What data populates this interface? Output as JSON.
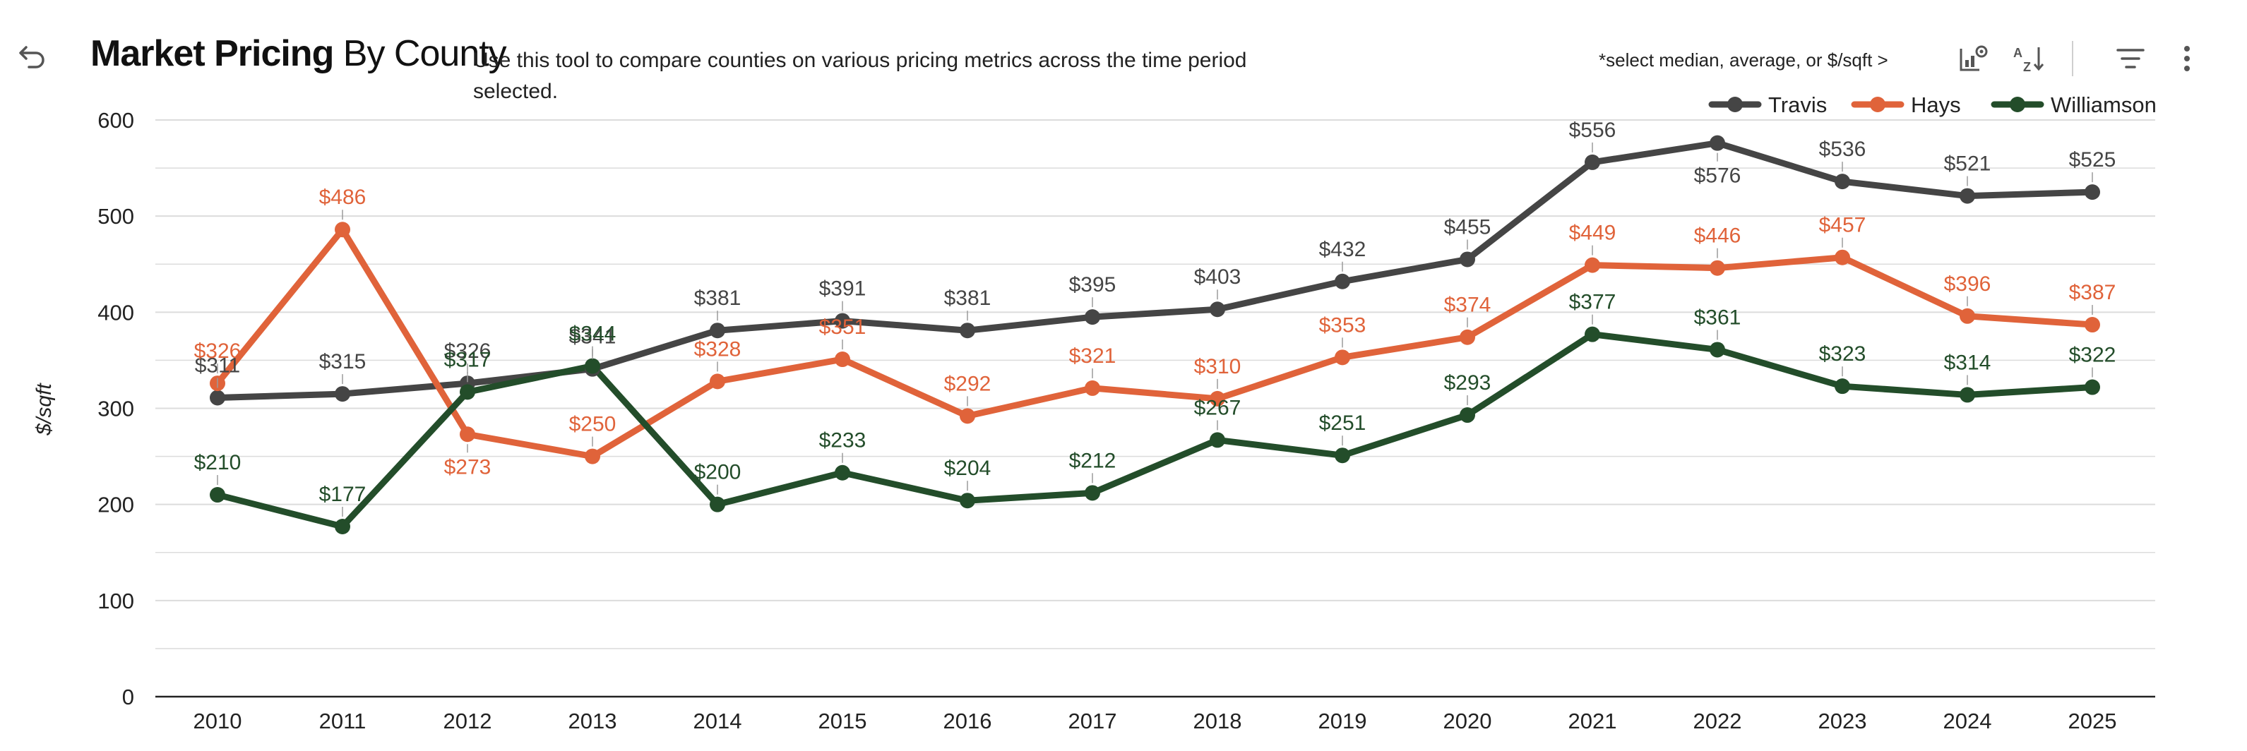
{
  "header": {
    "title_bold": "Market Pricing",
    "title_rest": " By County",
    "description": "Use this tool to compare counties on various pricing metrics across the time period selected.",
    "hint": "*select median, average, or $/sqft  >"
  },
  "toolbar": {
    "undo_icon": "undo-icon",
    "chart_settings_icon": "chart-settings-icon",
    "sort_icon": "sort-az-icon",
    "filter_icon": "filter-icon",
    "more_icon": "more-vertical-icon"
  },
  "colors": {
    "Travis": "#454545",
    "Hays": "#E0633A",
    "Williamson": "#234D2A",
    "grid": "#dcdcdc",
    "axis": "#222222"
  },
  "chart_data": {
    "type": "line",
    "title": "Market Pricing By County",
    "xlabel": "",
    "ylabel": "$/sqft",
    "ylim": [
      0,
      600
    ],
    "yticks": [
      0,
      100,
      200,
      300,
      400,
      500,
      600
    ],
    "grid": true,
    "legend_position": "top-right",
    "categories": [
      "2010",
      "2011",
      "2012",
      "2013",
      "2014",
      "2015",
      "2016",
      "2017",
      "2018",
      "2019",
      "2020",
      "2021",
      "2022",
      "2023",
      "2024",
      "2025"
    ],
    "series": [
      {
        "name": "Travis",
        "values": [
          311,
          315,
          326,
          341,
          381,
          391,
          381,
          395,
          403,
          432,
          455,
          556,
          576,
          536,
          521,
          525
        ],
        "labels": [
          "$311",
          "$315",
          "$326",
          "$341",
          "$381",
          "$391",
          "$381",
          "$395",
          "$403",
          "$432",
          "$455",
          "$556",
          "$576",
          "$536",
          "$521",
          "$525"
        ]
      },
      {
        "name": "Hays",
        "values": [
          326,
          486,
          273,
          250,
          328,
          351,
          292,
          321,
          310,
          353,
          374,
          449,
          446,
          457,
          396,
          387
        ],
        "labels": [
          "$326",
          "$486",
          "$273",
          "$250",
          "$328",
          "$351",
          "$292",
          "$321",
          "$310",
          "$353",
          "$374",
          "$449",
          "$446",
          "$457",
          "$396",
          "$387"
        ]
      },
      {
        "name": "Williamson",
        "values": [
          210,
          177,
          317,
          344,
          200,
          233,
          204,
          212,
          267,
          251,
          293,
          377,
          361,
          323,
          314,
          322
        ],
        "labels": [
          "$210",
          "$177",
          "$317",
          "$344",
          "$200",
          "$233",
          "$204",
          "$212",
          "$267",
          "$251",
          "$293",
          "$377",
          "$361",
          "$323",
          "$314",
          "$322"
        ]
      }
    ]
  }
}
